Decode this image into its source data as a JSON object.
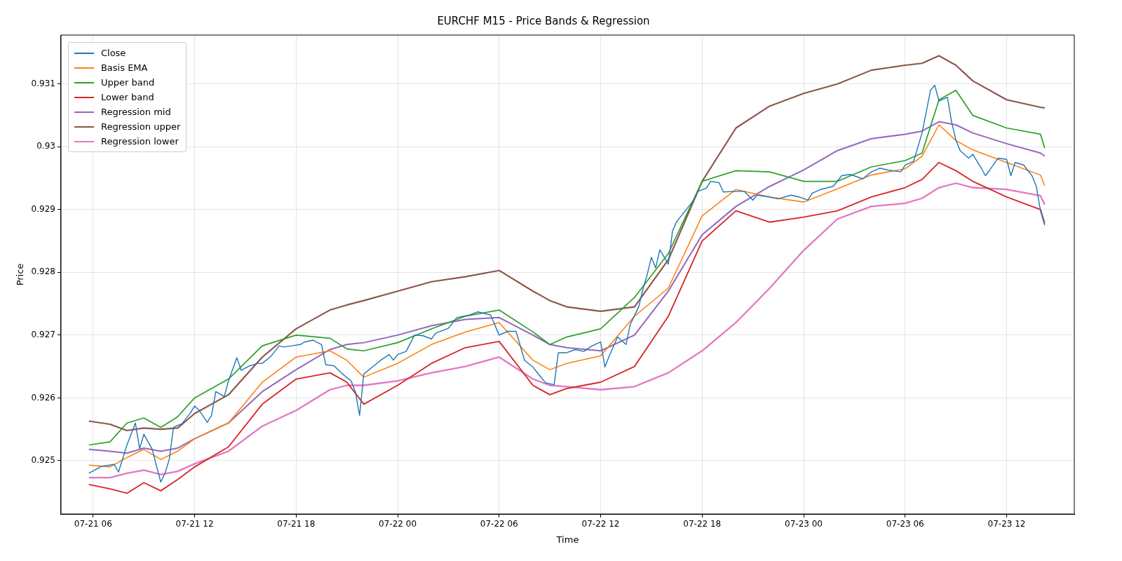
{
  "chart_data": {
    "type": "line",
    "title": "EURCHF M15 - Price Bands & Regression",
    "xlabel": "Time",
    "ylabel": "Price",
    "xlim": [
      "--07-21T04:06",
      "--07-23T16:00"
    ],
    "xticks": [
      {
        "value": "--07-21T06:00",
        "label": "07-21 06"
      },
      {
        "value": "--07-21T12:00",
        "label": "07-21 12"
      },
      {
        "value": "--07-21T18:00",
        "label": "07-21 18"
      },
      {
        "value": "--07-22T00:00",
        "label": "07-22 00"
      },
      {
        "value": "--07-22T06:00",
        "label": "07-22 06"
      },
      {
        "value": "--07-22T12:00",
        "label": "07-22 12"
      },
      {
        "value": "--07-22T18:00",
        "label": "07-22 18"
      },
      {
        "value": "--07-23T00:00",
        "label": "07-23 00"
      },
      {
        "value": "--07-23T06:00",
        "label": "07-23 06"
      },
      {
        "value": "--07-23T12:00",
        "label": "07-23 12"
      }
    ],
    "ylim": [
      0.92415,
      0.93178
    ],
    "yticks": [
      0.925,
      0.926,
      0.927,
      0.928,
      0.929,
      0.93,
      0.931
    ],
    "grid": true,
    "legend": "top left",
    "x": [
      "--07-21T05:45",
      "--07-21T07:00",
      "--07-21T08:00",
      "--07-21T09:00",
      "--07-21T10:00",
      "--07-21T11:00",
      "--07-21T12:00",
      "--07-21T14:00",
      "--07-21T16:00",
      "--07-21T18:00",
      "--07-21T20:00",
      "--07-21T21:00",
      "--07-21T22:00",
      "--07-22T00:00",
      "--07-22T02:00",
      "--07-22T04:00",
      "--07-22T06:00",
      "--07-22T08:00",
      "--07-22T09:00",
      "--07-22T10:00",
      "--07-22T12:00",
      "--07-22T14:00",
      "--07-22T16:00",
      "--07-22T18:00",
      "--07-22T20:00",
      "--07-22T22:00",
      "--07-23T00:00",
      "--07-23T02:00",
      "--07-23T04:00",
      "--07-23T06:00",
      "--07-23T07:00",
      "--07-23T08:00",
      "--07-23T09:00",
      "--07-23T10:00",
      "--07-23T12:00",
      "--07-23T14:00",
      "--07-23T14:15"
    ],
    "series": [
      {
        "name": "Close",
        "color": "#1f77b4",
        "x": [
          "--07-21T05:45",
          "--07-21T06:30",
          "--07-21T07:15",
          "--07-21T07:30",
          "--07-21T08:00",
          "--07-21T08:30",
          "--07-21T08:45",
          "--07-21T09:00",
          "--07-21T09:30",
          "--07-21T09:45",
          "--07-21T10:00",
          "--07-21T10:15",
          "--07-21T10:30",
          "--07-21T10:45",
          "--07-21T11:15",
          "--07-21T11:45",
          "--07-21T12:00",
          "--07-21T12:15",
          "--07-21T12:45",
          "--07-21T13:00",
          "--07-21T13:15",
          "--07-21T13:45",
          "--07-21T14:00",
          "--07-21T14:30",
          "--07-21T14:45",
          "--07-21T15:15",
          "--07-21T15:45",
          "--07-21T16:00",
          "--07-21T16:30",
          "--07-21T17:00",
          "--07-21T17:15",
          "--07-21T17:45",
          "--07-21T18:15",
          "--07-21T18:30",
          "--07-21T19:00",
          "--07-21T19:30",
          "--07-21T19:45",
          "--07-21T20:15",
          "--07-21T20:45",
          "--07-21T21:15",
          "--07-21T21:30",
          "--07-21T21:45",
          "--07-21T22:00",
          "--07-21T22:30",
          "--07-21T23:00",
          "--07-21T23:30",
          "--07-21T23:45",
          "--07-22T00:00",
          "--07-22T00:30",
          "--07-22T01:00",
          "--07-22T01:30",
          "--07-22T02:00",
          "--07-22T02:15",
          "--07-22T03:00",
          "--07-22T03:30",
          "--07-22T04:15",
          "--07-22T04:45",
          "--07-22T05:30",
          "--07-22T06:00",
          "--07-22T06:30",
          "--07-22T07:00",
          "--07-22T07:30",
          "--07-22T08:00",
          "--07-22T08:30",
          "--07-22T08:45",
          "--07-22T09:15",
          "--07-22T09:30",
          "--07-22T10:00",
          "--07-22T10:30",
          "--07-22T11:00",
          "--07-22T11:30",
          "--07-22T12:00",
          "--07-22T12:15",
          "--07-22T12:30",
          "--07-22T13:00",
          "--07-22T13:30",
          "--07-22T13:45",
          "--07-22T14:15",
          "--07-22T14:30",
          "--07-22T14:45",
          "--07-22T15:00",
          "--07-22T15:15",
          "--07-22T15:30",
          "--07-22T16:00",
          "--07-22T16:15",
          "--07-22T16:30",
          "--07-22T17:00",
          "--07-22T17:30",
          "--07-22T17:45",
          "--07-22T18:15",
          "--07-22T18:30",
          "--07-22T19:00",
          "--07-22T19:15",
          "--07-22T20:00",
          "--07-22T20:30",
          "--07-22T21:00",
          "--07-22T21:15",
          "--07-22T22:00",
          "--07-22T22:30",
          "--07-22T23:15",
          "--07-22T23:45",
          "--07-23T00:15",
          "--07-23T00:30",
          "--07-23T01:00",
          "--07-23T01:45",
          "--07-23T02:15",
          "--07-23T02:45",
          "--07-23T03:30",
          "--07-23T04:00",
          "--07-23T04:30",
          "--07-23T05:00",
          "--07-23T05:45",
          "--07-23T06:00",
          "--07-23T06:30",
          "--07-23T07:00",
          "--07-23T07:30",
          "--07-23T07:45",
          "--07-23T08:00",
          "--07-23T08:30",
          "--07-23T08:45",
          "--07-23T09:00",
          "--07-23T09:15",
          "--07-23T09:45",
          "--07-23T10:00",
          "--07-23T10:30",
          "--07-23T10:45",
          "--07-23T11:00",
          "--07-23T11:30",
          "--07-23T12:00",
          "--07-23T12:15",
          "--07-23T12:30",
          "--07-23T13:00",
          "--07-23T13:30",
          "--07-23T13:45",
          "--07-23T14:00",
          "--07-23T14:15"
        ],
        "values": [
          0.9248,
          0.92491,
          0.92494,
          0.92482,
          0.92525,
          0.9256,
          0.92519,
          0.92542,
          0.92518,
          0.92491,
          0.92466,
          0.9248,
          0.92502,
          0.92553,
          0.92559,
          0.92576,
          0.92587,
          0.92581,
          0.92561,
          0.92572,
          0.9261,
          0.92602,
          0.92627,
          0.92664,
          0.92644,
          0.92651,
          0.92655,
          0.92655,
          0.92666,
          0.92683,
          0.92681,
          0.92683,
          0.92685,
          0.92689,
          0.92692,
          0.92685,
          0.92653,
          0.92651,
          0.92638,
          0.92627,
          0.9261,
          0.92572,
          0.92638,
          0.92649,
          0.9266,
          0.92669,
          0.9266,
          0.92669,
          0.92674,
          0.927,
          0.92699,
          0.92694,
          0.92703,
          0.92711,
          0.92728,
          0.92732,
          0.92737,
          0.92732,
          0.927,
          0.92706,
          0.92706,
          0.9266,
          0.92649,
          0.92632,
          0.92624,
          0.92621,
          0.92672,
          0.92672,
          0.92677,
          0.92674,
          0.92683,
          0.92689,
          0.92649,
          0.92666,
          0.92697,
          0.92685,
          0.92717,
          0.92745,
          0.92773,
          0.92796,
          0.92824,
          0.92807,
          0.92836,
          0.92813,
          0.92866,
          0.92881,
          0.92898,
          0.92915,
          0.92929,
          0.92934,
          0.92945,
          0.92943,
          0.92928,
          0.92929,
          0.92929,
          0.92915,
          0.92923,
          0.9292,
          0.92917,
          0.92923,
          0.9292,
          0.92915,
          0.92926,
          0.92932,
          0.92937,
          0.92954,
          0.92956,
          0.92949,
          0.9296,
          0.92966,
          0.92963,
          0.9296,
          0.92971,
          0.92977,
          0.93022,
          0.9309,
          0.93098,
          0.93073,
          0.93079,
          0.93039,
          0.93011,
          0.92994,
          0.92982,
          0.92988,
          0.92966,
          0.92954,
          0.92963,
          0.92982,
          0.9298,
          0.92954,
          0.92975,
          0.92971,
          0.92954,
          0.92937,
          0.92898,
          0.92875
        ]
      },
      {
        "name": "Basis EMA",
        "color": "#ff7f0e",
        "values": [
          0.92493,
          0.9249,
          0.92505,
          0.92518,
          0.92502,
          0.92515,
          0.92535,
          0.9256,
          0.92625,
          0.92665,
          0.92675,
          0.9266,
          0.92633,
          0.92655,
          0.92685,
          0.92705,
          0.9272,
          0.9266,
          0.92645,
          0.92655,
          0.92667,
          0.9273,
          0.92775,
          0.9289,
          0.92932,
          0.9292,
          0.92912,
          0.92933,
          0.92955,
          0.92965,
          0.92985,
          0.93035,
          0.9301,
          0.92995,
          0.92975,
          0.92955,
          0.92938
        ]
      },
      {
        "name": "Upper band",
        "color": "#2ca02c",
        "values": [
          0.92525,
          0.9253,
          0.9256,
          0.92568,
          0.92553,
          0.9257,
          0.926,
          0.9263,
          0.92683,
          0.927,
          0.92695,
          0.92678,
          0.92675,
          0.92688,
          0.9271,
          0.9273,
          0.9274,
          0.92705,
          0.92685,
          0.92697,
          0.9271,
          0.9276,
          0.9283,
          0.92945,
          0.92962,
          0.9296,
          0.92945,
          0.92945,
          0.92968,
          0.92978,
          0.9299,
          0.93075,
          0.9309,
          0.9305,
          0.9303,
          0.9302,
          0.92998
        ]
      },
      {
        "name": "Lower band",
        "color": "#d62728",
        "values": [
          0.92462,
          0.92455,
          0.92448,
          0.92465,
          0.92452,
          0.9247,
          0.9249,
          0.92522,
          0.9259,
          0.9263,
          0.9264,
          0.92625,
          0.9259,
          0.9262,
          0.92655,
          0.9268,
          0.9269,
          0.9262,
          0.92605,
          0.92615,
          0.92625,
          0.9265,
          0.9273,
          0.9285,
          0.92898,
          0.9288,
          0.92888,
          0.92898,
          0.9292,
          0.92935,
          0.92948,
          0.92975,
          0.92962,
          0.92945,
          0.9292,
          0.929,
          0.92878
        ]
      },
      {
        "name": "Regression mid",
        "color": "#9467bd",
        "values": [
          0.92518,
          0.92515,
          0.92512,
          0.9252,
          0.92515,
          0.9252,
          0.92535,
          0.9256,
          0.9261,
          0.92645,
          0.92677,
          0.92685,
          0.92688,
          0.927,
          0.92715,
          0.92725,
          0.92728,
          0.927,
          0.92685,
          0.9268,
          0.92675,
          0.927,
          0.9277,
          0.9286,
          0.92905,
          0.92937,
          0.92963,
          0.92994,
          0.93013,
          0.9302,
          0.93025,
          0.9304,
          0.93035,
          0.93022,
          0.93005,
          0.9299,
          0.92985
        ]
      },
      {
        "name": "Regression upper",
        "color": "#8c564b",
        "values": [
          0.92563,
          0.92558,
          0.92548,
          0.92552,
          0.9255,
          0.92552,
          0.92575,
          0.92605,
          0.92665,
          0.9271,
          0.9274,
          0.92748,
          0.92755,
          0.9277,
          0.92785,
          0.92793,
          0.92803,
          0.9277,
          0.92755,
          0.92745,
          0.92738,
          0.92745,
          0.9282,
          0.92945,
          0.9303,
          0.93065,
          0.93085,
          0.931,
          0.93122,
          0.9313,
          0.93133,
          0.93145,
          0.9313,
          0.93105,
          0.93075,
          0.93063,
          0.93062
        ]
      },
      {
        "name": "Regression lower",
        "color": "#e377c2",
        "values": [
          0.92473,
          0.92473,
          0.9248,
          0.92485,
          0.92478,
          0.92483,
          0.92495,
          0.92515,
          0.92555,
          0.9258,
          0.92613,
          0.9262,
          0.9262,
          0.92627,
          0.9264,
          0.9265,
          0.92665,
          0.9263,
          0.9262,
          0.92618,
          0.92613,
          0.92618,
          0.9264,
          0.92675,
          0.9272,
          0.92775,
          0.92835,
          0.92885,
          0.92905,
          0.9291,
          0.92918,
          0.92935,
          0.92942,
          0.92935,
          0.92932,
          0.92922,
          0.92908
        ]
      }
    ]
  }
}
